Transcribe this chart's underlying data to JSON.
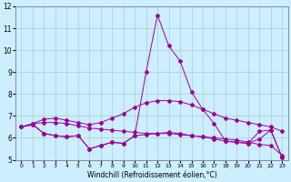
{
  "xlabel": "Windchill (Refroidissement éolien,°C)",
  "background_color": "#cceeff",
  "line_color": "#990099",
  "grid_color": "#aacccc",
  "xlim": [
    -0.5,
    23.5
  ],
  "ylim": [
    5,
    12
  ],
  "yticks": [
    5,
    6,
    7,
    8,
    9,
    10,
    11,
    12
  ],
  "xticks": [
    0,
    1,
    2,
    3,
    4,
    5,
    6,
    7,
    8,
    9,
    10,
    11,
    12,
    13,
    14,
    15,
    16,
    17,
    18,
    19,
    20,
    21,
    22,
    23
  ],
  "s1": [
    6.5,
    6.65,
    6.85,
    6.9,
    6.8,
    6.7,
    6.6,
    6.7,
    6.9,
    7.1,
    7.4,
    7.6,
    7.7,
    7.7,
    7.65,
    7.5,
    7.3,
    7.1,
    6.9,
    6.8,
    6.7,
    6.6,
    6.5,
    6.3
  ],
  "s2": [
    6.5,
    6.65,
    6.7,
    6.7,
    6.65,
    6.55,
    6.45,
    6.4,
    6.35,
    6.3,
    6.25,
    6.2,
    6.2,
    6.2,
    6.15,
    6.1,
    6.05,
    6.0,
    5.95,
    5.9,
    5.8,
    5.7,
    5.65,
    5.2
  ],
  "s3": [
    6.5,
    6.6,
    6.2,
    6.1,
    6.05,
    6.1,
    5.5,
    5.65,
    5.8,
    5.75,
    6.1,
    6.15,
    6.2,
    6.25,
    6.2,
    6.1,
    6.05,
    5.95,
    5.85,
    5.8,
    5.75,
    6.3,
    6.35,
    5.1
  ],
  "s4": [
    6.5,
    6.6,
    6.2,
    6.1,
    6.05,
    6.1,
    5.5,
    5.65,
    5.8,
    5.75,
    6.1,
    9.0,
    11.6,
    10.2,
    9.5,
    8.1,
    7.3,
    6.65,
    5.85,
    5.8,
    5.75,
    5.95,
    6.35,
    5.1
  ]
}
